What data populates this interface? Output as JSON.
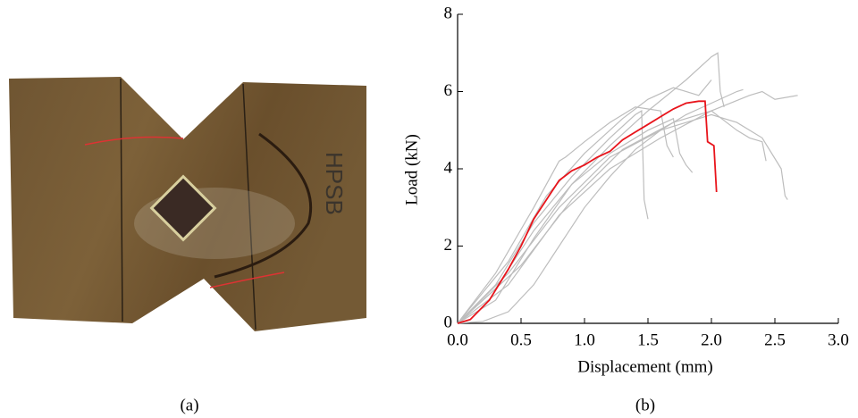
{
  "panel_labels": [
    "(a)",
    "(b)"
  ],
  "chart_data": {
    "type": "line",
    "xlabel": "Displacement (mm)",
    "ylabel": "Load (kN)",
    "xlim": [
      0,
      3
    ],
    "ylim": [
      0,
      8
    ],
    "xticks": [
      {
        "value": 0,
        "label": "0.0"
      },
      {
        "value": 0.5,
        "label": "0.5"
      },
      {
        "value": 1,
        "label": "1.0"
      },
      {
        "value": 1.5,
        "label": "1.5"
      },
      {
        "value": 2,
        "label": "2.0"
      },
      {
        "value": 2.5,
        "label": "2.5"
      },
      {
        "value": 3,
        "label": "3.0"
      }
    ],
    "yticks": [
      0,
      2,
      4,
      6,
      8
    ],
    "series": [
      {
        "color": "#bdbdbd",
        "x": [
          0,
          0.3,
          0.6,
          0.9,
          1.2,
          1.5,
          1.8,
          2.0,
          2.05,
          2.07,
          2.1
        ],
        "values": [
          0,
          0.6,
          2.2,
          3.6,
          4.6,
          5.5,
          6.3,
          6.9,
          7.0,
          6.0,
          5.6
        ]
      },
      {
        "color": "#bdbdbd",
        "x": [
          0,
          0.4,
          0.8,
          1.2,
          1.6,
          2.0,
          2.3,
          2.4,
          2.5,
          2.68
        ],
        "values": [
          0,
          1.0,
          2.8,
          4.0,
          4.8,
          5.5,
          5.9,
          6.0,
          5.8,
          5.9
        ]
      },
      {
        "color": "#bdbdbd",
        "x": [
          0,
          0.4,
          0.8,
          1.2,
          1.6,
          2.0,
          2.2,
          2.4,
          2.55,
          2.58,
          2.6
        ],
        "values": [
          0,
          1.3,
          3.0,
          4.3,
          5.0,
          5.4,
          5.2,
          4.8,
          4.0,
          3.3,
          3.2
        ]
      },
      {
        "color": "#bdbdbd",
        "x": [
          0,
          0.3,
          0.6,
          0.9,
          1.2,
          1.4,
          1.45,
          1.47,
          1.5
        ],
        "values": [
          0,
          1.0,
          2.6,
          3.8,
          4.8,
          5.4,
          5.5,
          3.2,
          2.7
        ]
      },
      {
        "color": "#bdbdbd",
        "x": [
          0,
          0.3,
          0.6,
          0.9,
          1.2,
          1.5,
          1.7,
          1.75,
          1.8,
          1.85
        ],
        "values": [
          0,
          0.9,
          2.4,
          3.6,
          4.4,
          5.0,
          5.3,
          4.4,
          4.1,
          3.9
        ]
      },
      {
        "color": "#bdbdbd",
        "x": [
          0,
          0.5,
          0.9,
          1.3,
          1.7,
          2.0,
          2.2,
          2.3,
          2.4,
          2.43
        ],
        "values": [
          0,
          1.5,
          3.2,
          4.5,
          5.2,
          5.5,
          5.0,
          4.8,
          4.7,
          4.2
        ]
      },
      {
        "color": "#bdbdbd",
        "x": [
          0,
          0.2,
          0.4,
          0.6,
          0.8,
          1.0,
          1.2,
          1.4,
          1.6,
          1.8,
          2.0,
          2.2,
          2.25
        ],
        "values": [
          0,
          0.05,
          0.3,
          1.0,
          2.0,
          3.0,
          3.8,
          4.5,
          5.0,
          5.4,
          5.7,
          6.0,
          6.05
        ]
      },
      {
        "color": "#bdbdbd",
        "x": [
          0,
          0.3,
          0.6,
          0.8,
          0.85,
          1.0,
          1.2,
          1.4,
          1.6,
          1.65,
          1.7
        ],
        "values": [
          0,
          1.3,
          3.0,
          4.2,
          4.3,
          4.7,
          5.2,
          5.6,
          5.5,
          4.6,
          4.3
        ]
      },
      {
        "color": "#bdbdbd",
        "x": [
          0,
          0.4,
          0.7,
          1.0,
          1.3,
          1.5,
          1.7,
          1.9,
          2.0
        ],
        "values": [
          0,
          1.6,
          3.3,
          4.4,
          5.3,
          5.8,
          6.1,
          5.9,
          6.3
        ]
      },
      {
        "color": "#e8141b",
        "x": [
          0,
          0.1,
          0.25,
          0.4,
          0.5,
          0.6,
          0.7,
          0.8,
          0.9,
          1.0,
          1.1,
          1.2,
          1.3,
          1.4,
          1.5,
          1.6,
          1.7,
          1.8,
          1.9,
          1.95,
          1.97,
          2.02,
          2.04
        ],
        "values": [
          0,
          0.1,
          0.6,
          1.4,
          2.0,
          2.7,
          3.2,
          3.7,
          3.95,
          4.1,
          4.3,
          4.45,
          4.75,
          4.95,
          5.15,
          5.35,
          5.55,
          5.7,
          5.75,
          5.75,
          4.7,
          4.6,
          3.4
        ]
      }
    ]
  }
}
